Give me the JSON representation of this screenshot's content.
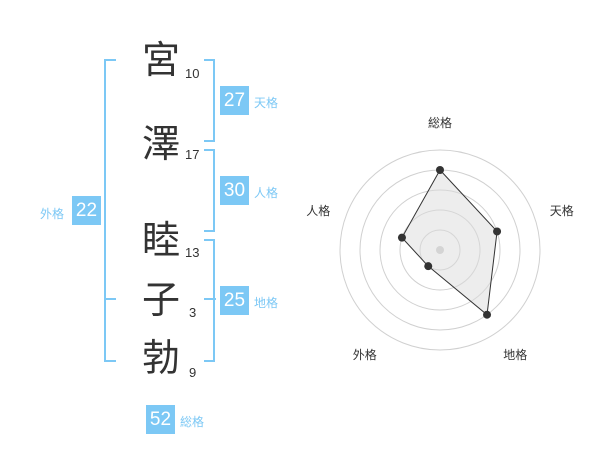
{
  "name": {
    "chars": [
      {
        "char": "宮",
        "strokes": "10"
      },
      {
        "char": "澤",
        "strokes": "17"
      },
      {
        "char": "睦",
        "strokes": "13"
      },
      {
        "char": "子",
        "strokes": "3"
      },
      {
        "char": "勃",
        "strokes": "9"
      }
    ]
  },
  "kaku": {
    "tenkaku": {
      "label": "天格",
      "value": "27"
    },
    "jinkaku": {
      "label": "人格",
      "value": "30"
    },
    "chikaku": {
      "label": "地格",
      "value": "25"
    },
    "gaikaku": {
      "label": "外格",
      "value": "22"
    },
    "soukaku": {
      "label": "総格",
      "value": "52"
    }
  },
  "colors": {
    "accent": "#7cc8f5",
    "text": "#333333"
  },
  "chart_data": {
    "type": "radar",
    "axes": [
      "総格",
      "天格",
      "地格",
      "外格",
      "人格"
    ],
    "values": [
      4,
      3,
      4,
      1,
      2
    ],
    "range": [
      0,
      5
    ],
    "rings": 5
  }
}
